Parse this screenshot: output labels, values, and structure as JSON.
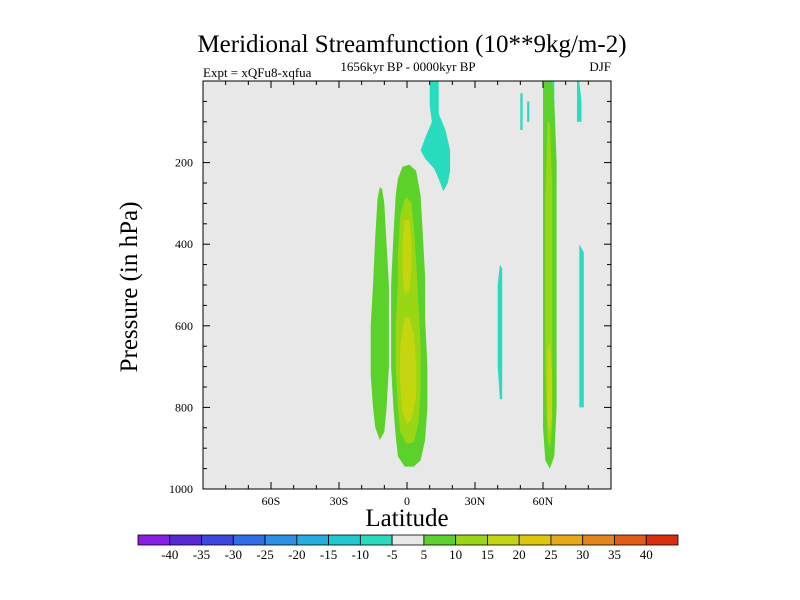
{
  "chart_data": {
    "type": "heatmap",
    "title": "Meridional Streamfunction (10**9kg/m-2)",
    "subtitle_left": "Expt = xQFu8-xqfua",
    "subtitle_center": "1656kyr BP - 0000kyr BP",
    "subtitle_right": "DJF",
    "xlabel": "Latitude",
    "ylabel": "Pressure (in hPa)",
    "xlim": [
      -90,
      90
    ],
    "ylim": [
      1000,
      0
    ],
    "x_ticks": [
      {
        "value": -60,
        "label": "60S"
      },
      {
        "value": -30,
        "label": "30S"
      },
      {
        "value": 0,
        "label": "0"
      },
      {
        "value": 30,
        "label": "30N"
      },
      {
        "value": 60,
        "label": "60N"
      }
    ],
    "y_ticks": [
      {
        "value": 200,
        "label": "200"
      },
      {
        "value": 400,
        "label": "400"
      },
      {
        "value": 600,
        "label": "600"
      },
      {
        "value": 800,
        "label": "800"
      },
      {
        "value": 1000,
        "label": "1000"
      }
    ],
    "background_color": "#e8e8e8",
    "colorbar": {
      "levels": [
        "-40",
        "-35",
        "-30",
        "-25",
        "-20",
        "-15",
        "-10",
        "-5",
        "5",
        "10",
        "15",
        "20",
        "25",
        "30",
        "35",
        "40"
      ],
      "colors": [
        "#8a1ee6",
        "#5a28d8",
        "#3c46e0",
        "#2e6ee8",
        "#2a90e8",
        "#22aee0",
        "#1ecad2",
        "#28dcbe",
        "#e8e8e8",
        "#5ad22a",
        "#9ad614",
        "#c6d60e",
        "#e0c60a",
        "#e6a814",
        "#e48418",
        "#e25c14",
        "#dc2e0c"
      ]
    },
    "regions": [
      {
        "level": "5 to 10",
        "color": "#5ad22a",
        "points": [
          [
            -12,
            260
          ],
          [
            -13,
            290
          ],
          [
            -14,
            380
          ],
          [
            -15,
            500
          ],
          [
            -16,
            600
          ],
          [
            -16,
            720
          ],
          [
            -15,
            800
          ],
          [
            -14,
            850
          ],
          [
            -12,
            880
          ],
          [
            -10,
            860
          ],
          [
            -9,
            800
          ],
          [
            -8,
            700
          ],
          [
            -8,
            600
          ],
          [
            -8,
            500
          ],
          [
            -9,
            400
          ],
          [
            -10,
            300
          ],
          [
            -11,
            265
          ]
        ]
      },
      {
        "level": "5 to 10",
        "color": "#5ad22a",
        "points": [
          [
            -2,
            210
          ],
          [
            -4,
            240
          ],
          [
            -5,
            280
          ],
          [
            -6,
            380
          ],
          [
            -7,
            500
          ],
          [
            -7,
            600
          ],
          [
            -7,
            700
          ],
          [
            -6,
            800
          ],
          [
            -5,
            870
          ],
          [
            -4,
            920
          ],
          [
            -1,
            945
          ],
          [
            3,
            945
          ],
          [
            6,
            930
          ],
          [
            8,
            880
          ],
          [
            9,
            800
          ],
          [
            9,
            700
          ],
          [
            8,
            580
          ],
          [
            8,
            480
          ],
          [
            7,
            380
          ],
          [
            6,
            280
          ],
          [
            4,
            220
          ],
          [
            1,
            205
          ]
        ]
      },
      {
        "level": "10 to 15",
        "color": "#9ad614",
        "points": [
          [
            -1,
            290
          ],
          [
            -3,
            330
          ],
          [
            -4,
            420
          ],
          [
            -4,
            500
          ],
          [
            -5,
            600
          ],
          [
            -5,
            700
          ],
          [
            -4,
            800
          ],
          [
            -3,
            860
          ],
          [
            0,
            890
          ],
          [
            3,
            885
          ],
          [
            5,
            840
          ],
          [
            6,
            760
          ],
          [
            6,
            650
          ],
          [
            5,
            540
          ],
          [
            4,
            440
          ],
          [
            3,
            360
          ],
          [
            2,
            300
          ],
          [
            0,
            285
          ]
        ]
      },
      {
        "level": "15 to 20",
        "color": "#c6d60e",
        "points": [
          [
            -1,
            340
          ],
          [
            -2,
            400
          ],
          [
            -2,
            470
          ],
          [
            -1,
            520
          ],
          [
            1,
            515
          ],
          [
            2,
            460
          ],
          [
            2,
            390
          ],
          [
            1,
            340
          ]
        ]
      },
      {
        "level": "15 to 20",
        "color": "#c6d60e",
        "points": [
          [
            -1,
            580
          ],
          [
            -3,
            650
          ],
          [
            -3,
            740
          ],
          [
            -2,
            810
          ],
          [
            0,
            840
          ],
          [
            2,
            830
          ],
          [
            4,
            770
          ],
          [
            4,
            690
          ],
          [
            3,
            620
          ],
          [
            1,
            580
          ]
        ]
      },
      {
        "level": "-5 to -10",
        "color": "#28dcbe",
        "points": [
          [
            10,
            0
          ],
          [
            10,
            60
          ],
          [
            11,
            100
          ],
          [
            8,
            140
          ],
          [
            6,
            170
          ],
          [
            8,
            190
          ],
          [
            12,
            215
          ],
          [
            14,
            240
          ],
          [
            16,
            270
          ],
          [
            18,
            250
          ],
          [
            19,
            220
          ],
          [
            19,
            170
          ],
          [
            17,
            120
          ],
          [
            14,
            80
          ],
          [
            14,
            30
          ],
          [
            14,
            0
          ]
        ]
      },
      {
        "level": "-5 to -10",
        "color": "#28dcbe",
        "points": [
          [
            41,
            450
          ],
          [
            40,
            500
          ],
          [
            40,
            600
          ],
          [
            40,
            700
          ],
          [
            41,
            780
          ],
          [
            42,
            780
          ],
          [
            42,
            700
          ],
          [
            42,
            600
          ],
          [
            42,
            500
          ],
          [
            42,
            460
          ]
        ]
      },
      {
        "level": "-5 to -10",
        "color": "#28dcbe",
        "points": [
          [
            50,
            30
          ],
          [
            50,
            80
          ],
          [
            50,
            120
          ],
          [
            51,
            120
          ],
          [
            51,
            80
          ],
          [
            51,
            30
          ]
        ]
      },
      {
        "level": "-5 to -10",
        "color": "#28dcbe",
        "points": [
          [
            64,
            0
          ],
          [
            64,
            100
          ],
          [
            65,
            100
          ],
          [
            65,
            0
          ]
        ]
      },
      {
        "level": "-5 to -10",
        "color": "#28dcbe",
        "points": [
          [
            75,
            0
          ],
          [
            75,
            50
          ],
          [
            75,
            100
          ],
          [
            77,
            100
          ],
          [
            77,
            50
          ],
          [
            76,
            0
          ]
        ]
      },
      {
        "level": "-5 to -10",
        "color": "#28dcbe",
        "points": [
          [
            76,
            400
          ],
          [
            76,
            600
          ],
          [
            76,
            800
          ],
          [
            78,
            800
          ],
          [
            78,
            600
          ],
          [
            78,
            420
          ]
        ]
      },
      {
        "level": "5 to 10",
        "color": "#5ad22a",
        "points": [
          [
            60,
            0
          ],
          [
            60,
            50
          ],
          [
            60,
            200
          ],
          [
            60,
            400
          ],
          [
            60,
            600
          ],
          [
            60,
            750
          ],
          [
            60,
            850
          ],
          [
            61,
            930
          ],
          [
            63,
            950
          ],
          [
            65,
            920
          ],
          [
            66,
            800
          ],
          [
            66,
            600
          ],
          [
            66,
            400
          ],
          [
            66,
            200
          ],
          [
            65,
            50
          ],
          [
            64,
            0
          ]
        ]
      },
      {
        "level": "10 to 15",
        "color": "#9ad614",
        "points": [
          [
            62,
            100
          ],
          [
            61,
            300
          ],
          [
            61,
            500
          ],
          [
            61,
            700
          ],
          [
            62,
            880
          ],
          [
            63,
            900
          ],
          [
            64,
            850
          ],
          [
            64,
            650
          ],
          [
            64,
            450
          ],
          [
            64,
            250
          ],
          [
            63,
            100
          ]
        ]
      },
      {
        "level": "15 to 20",
        "color": "#c6d60e",
        "points": [
          [
            62,
            660
          ],
          [
            62,
            760
          ],
          [
            62,
            840
          ],
          [
            63,
            860
          ],
          [
            64,
            820
          ],
          [
            64,
            720
          ],
          [
            63,
            640
          ]
        ]
      },
      {
        "level": "-5 to -10",
        "color": "#28dcbe",
        "points": [
          [
            53,
            50
          ],
          [
            53,
            100
          ],
          [
            54,
            100
          ],
          [
            54,
            50
          ]
        ]
      }
    ]
  }
}
